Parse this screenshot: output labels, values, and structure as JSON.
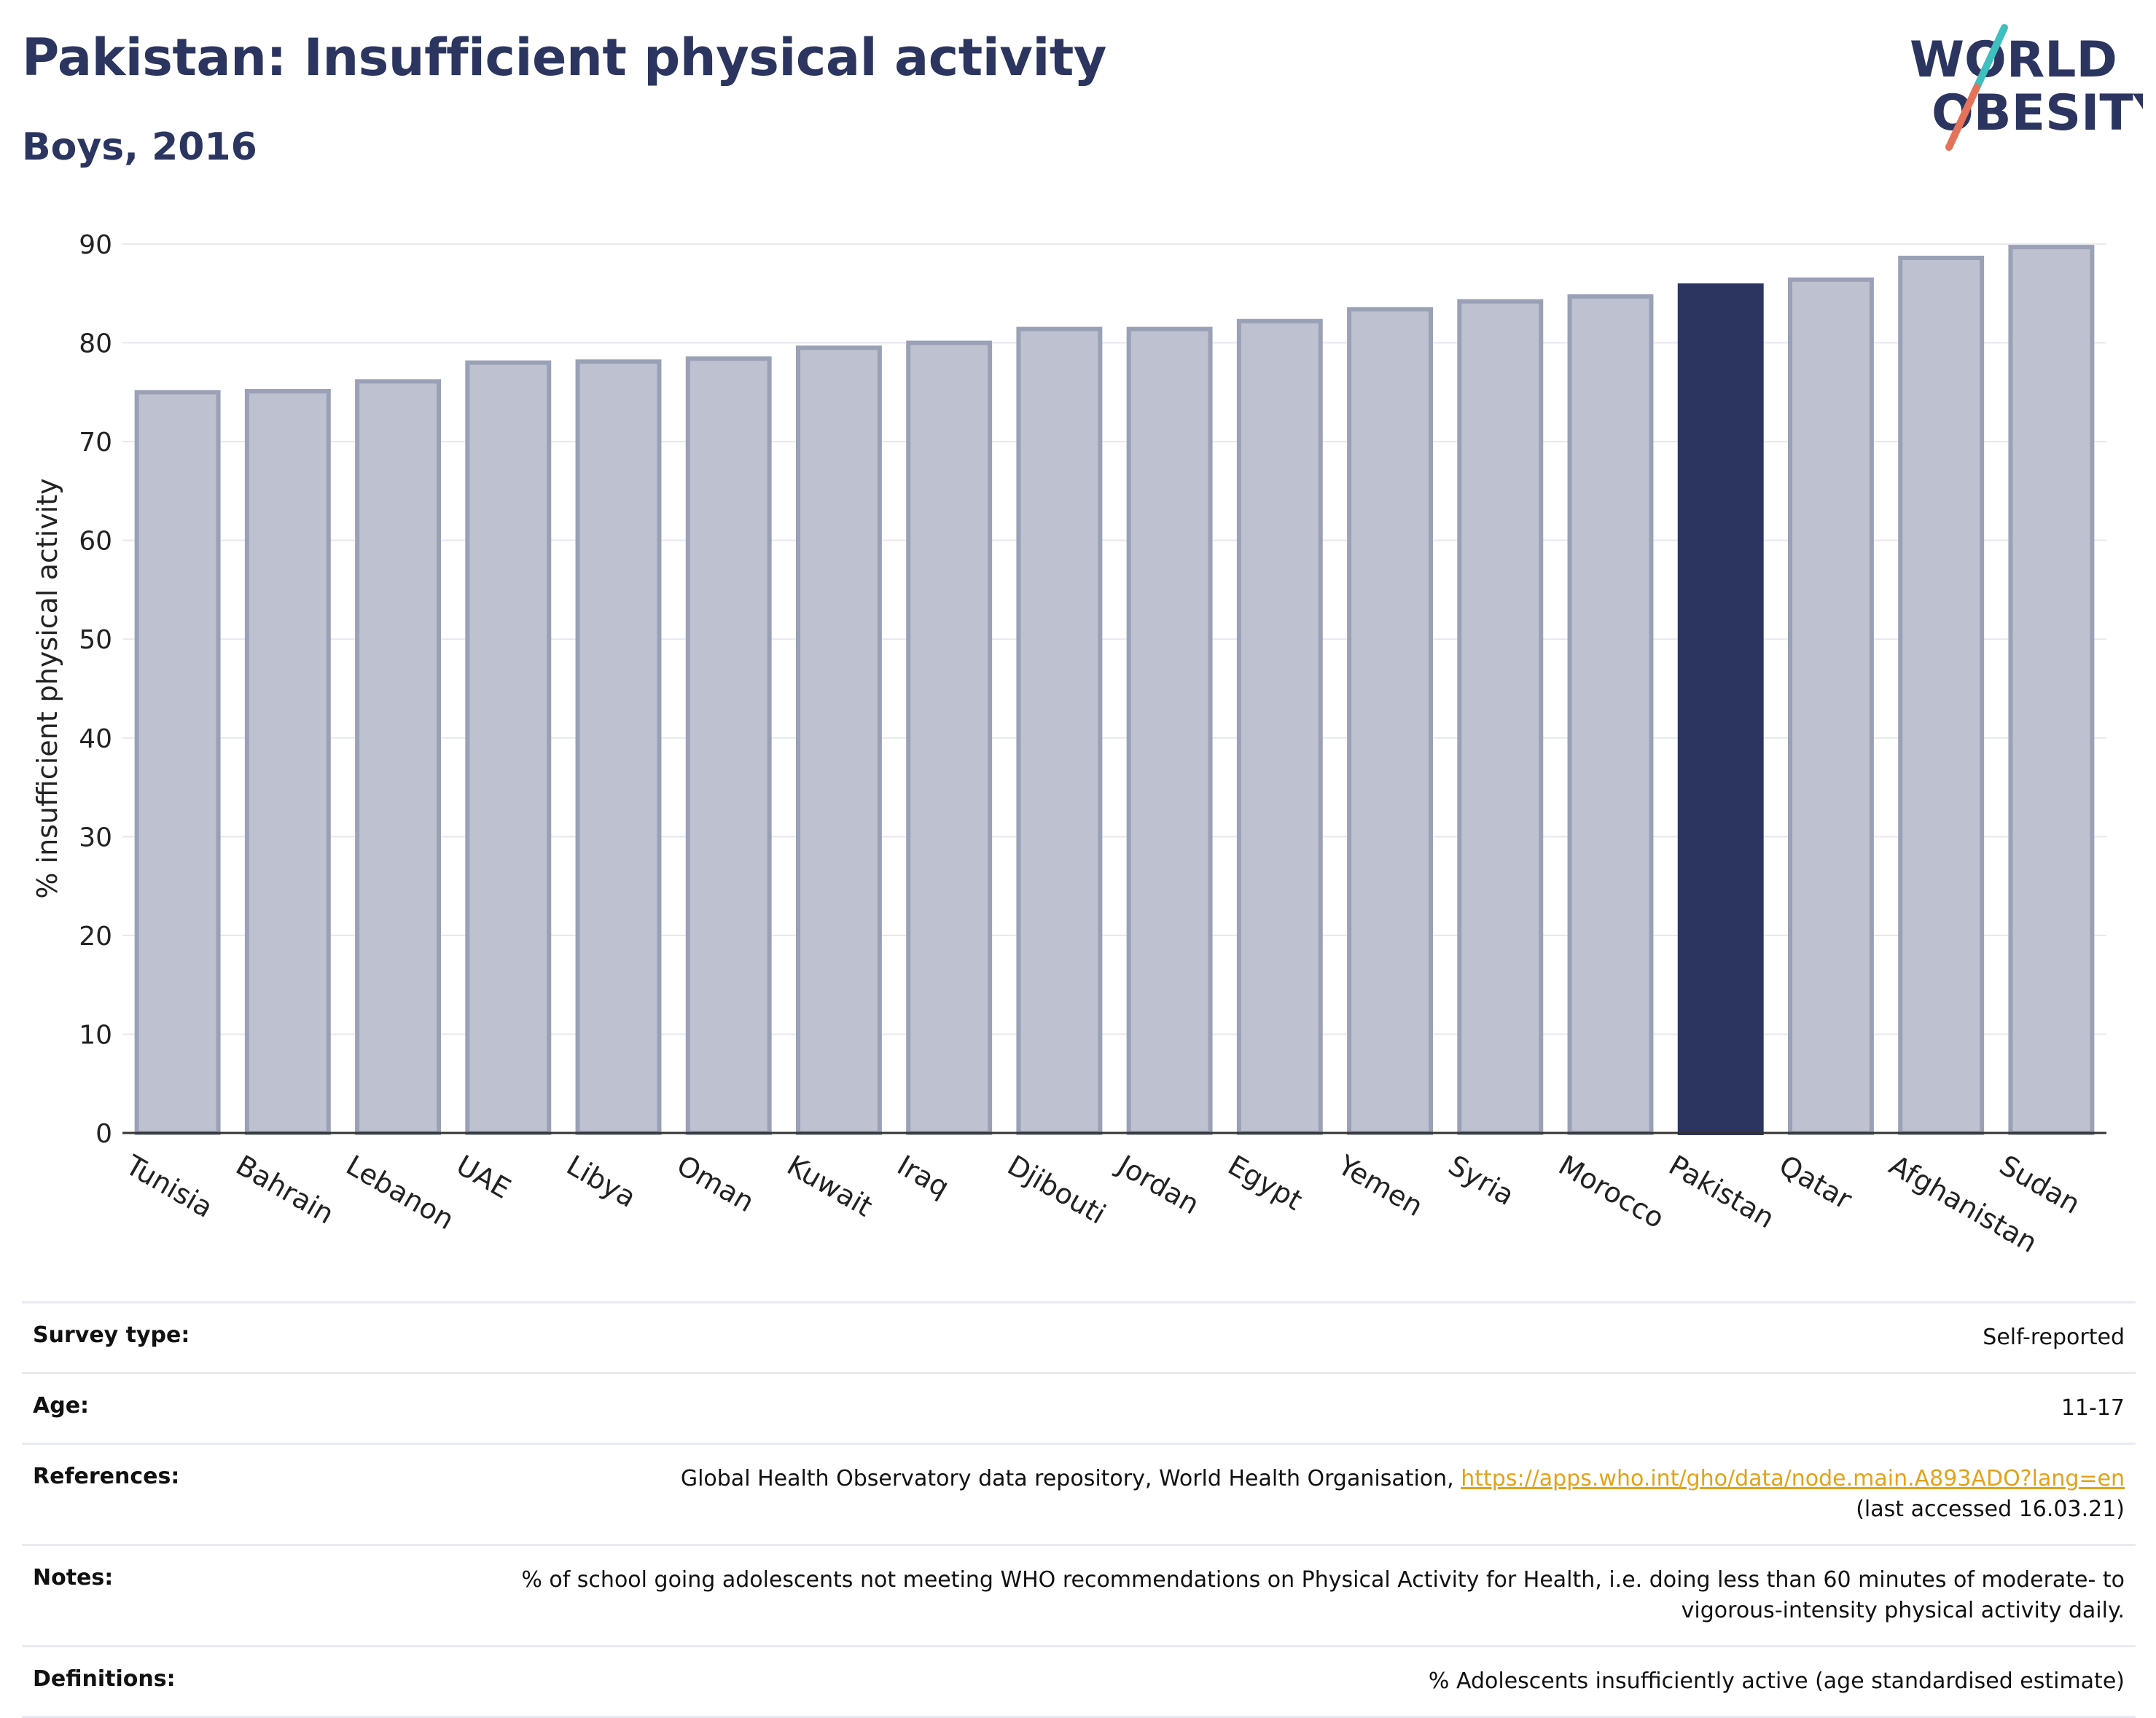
{
  "header": {
    "title": "Pakistan: Insufficient physical activity",
    "subtitle": "Boys, 2016"
  },
  "logo": {
    "line1": "WORLD",
    "line2": "OBESITY",
    "slash_colors": [
      "#3fbfbf",
      "#e4735a"
    ]
  },
  "chart_data": {
    "type": "bar",
    "ylabel": "% insufficient physical activity",
    "xlabel": "",
    "ylim": [
      0,
      90
    ],
    "yticks": [
      0,
      10,
      20,
      30,
      40,
      50,
      60,
      70,
      80,
      90
    ],
    "grid": true,
    "categories": [
      "Tunisia",
      "Bahrain",
      "Lebanon",
      "UAE",
      "Libya",
      "Oman",
      "Kuwait",
      "Iraq",
      "Djibouti",
      "Jordan",
      "Egypt",
      "Yemen",
      "Syria",
      "Morocco",
      "Pakistan",
      "Qatar",
      "Afghanistan",
      "Sudan"
    ],
    "values": [
      75.0,
      75.1,
      76.1,
      78.0,
      78.1,
      78.4,
      79.5,
      80.0,
      81.4,
      81.4,
      82.2,
      83.4,
      84.2,
      84.7,
      85.8,
      86.4,
      88.6,
      89.7
    ],
    "highlight": "Pakistan",
    "colors": {
      "bar": "#bec1d0",
      "bar_border": "#9aa0b6",
      "highlight": "#2b3560",
      "grid": "#e6e8ee",
      "axis": "#333333"
    }
  },
  "info": {
    "rows": [
      {
        "label": "Survey type:",
        "value": "Self-reported"
      },
      {
        "label": "Age:",
        "value": "11-17"
      },
      {
        "label": "References:",
        "value": "Global Health Observatory data repository, World Health Organisation,",
        "link": "https://apps.who.int/gho/data/node.main.A893ADO?lang=en",
        "value2": "(last accessed 16.03.21)"
      },
      {
        "label": "Notes:",
        "value": "% of school going adolescents not meeting WHO recommendations on Physical Activity for Health, i.e. doing less than 60 minutes of moderate- to vigorous-intensity physical activity daily."
      },
      {
        "label": "Definitions:",
        "value": "% Adolescents insufficiently active (age standardised estimate)"
      }
    ]
  }
}
